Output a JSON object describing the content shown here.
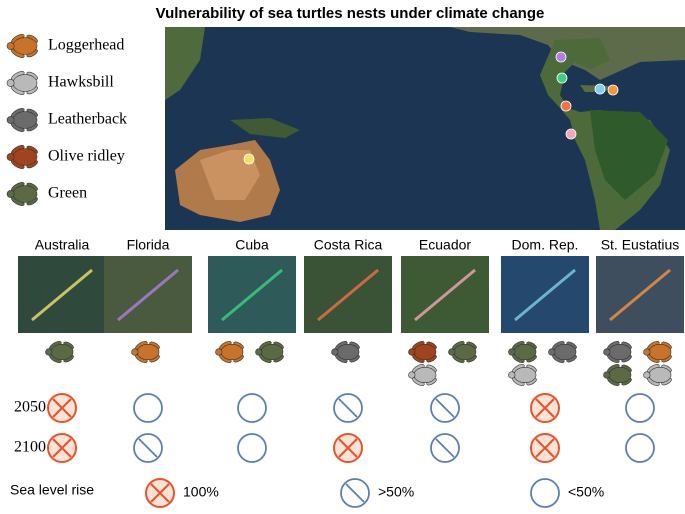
{
  "title": "Vulnerability of sea turtles nests under climate change",
  "species": [
    {
      "name": "Loggerhead",
      "color": "#c8722a"
    },
    {
      "name": "Hawksbill",
      "color": "#b9b9b9"
    },
    {
      "name": "Leatherback",
      "color": "#6b6b6b"
    },
    {
      "name": "Olive ridley",
      "color": "#a0441e"
    },
    {
      "name": "Green",
      "color": "#5b6a45"
    }
  ],
  "sites": [
    {
      "name": "Australia",
      "map_color": "#f3e06a",
      "thumb_color": "#2f4a3c",
      "species": [
        "Green"
      ]
    },
    {
      "name": "Florida",
      "map_color": "#b07fe0",
      "thumb_color": "#4a5a3e",
      "species": [
        "Loggerhead"
      ]
    },
    {
      "name": "Cuba",
      "map_color": "#3ed17e",
      "thumb_color": "#2f5a5a",
      "species": [
        "Loggerhead",
        "Green"
      ]
    },
    {
      "name": "Costa Rica",
      "map_color": "#f0714a",
      "thumb_color": "#3a5236",
      "species": [
        "Leatherback"
      ]
    },
    {
      "name": "Ecuador",
      "map_color": "#f2a6b8",
      "thumb_color": "#3e5a34",
      "species": [
        "Olive ridley",
        "Green",
        "Hawksbill"
      ]
    },
    {
      "name": "Dom. Rep.",
      "map_color": "#7fd0ea",
      "thumb_color": "#24486e",
      "species": [
        "Green",
        "Leatherback",
        "Hawksbill"
      ]
    },
    {
      "name": "St. Eustatius",
      "map_color": "#f5963c",
      "thumb_color": "#3e4e5e",
      "species": [
        "Leatherback",
        "Loggerhead",
        "Green",
        "Hawksbill"
      ]
    }
  ],
  "rows": [
    {
      "year": "2050",
      "status": [
        "100%",
        "<50%",
        "<50%",
        ">50%",
        ">50%",
        "100%",
        "<50%"
      ]
    },
    {
      "year": "2100",
      "status": [
        "100%",
        ">50%",
        "<50%",
        "100%",
        ">50%",
        "100%",
        "<50%"
      ]
    }
  ],
  "key": {
    "title": "Sea level rise",
    "items": [
      "100%",
      ">50%",
      "<50%"
    ]
  }
}
